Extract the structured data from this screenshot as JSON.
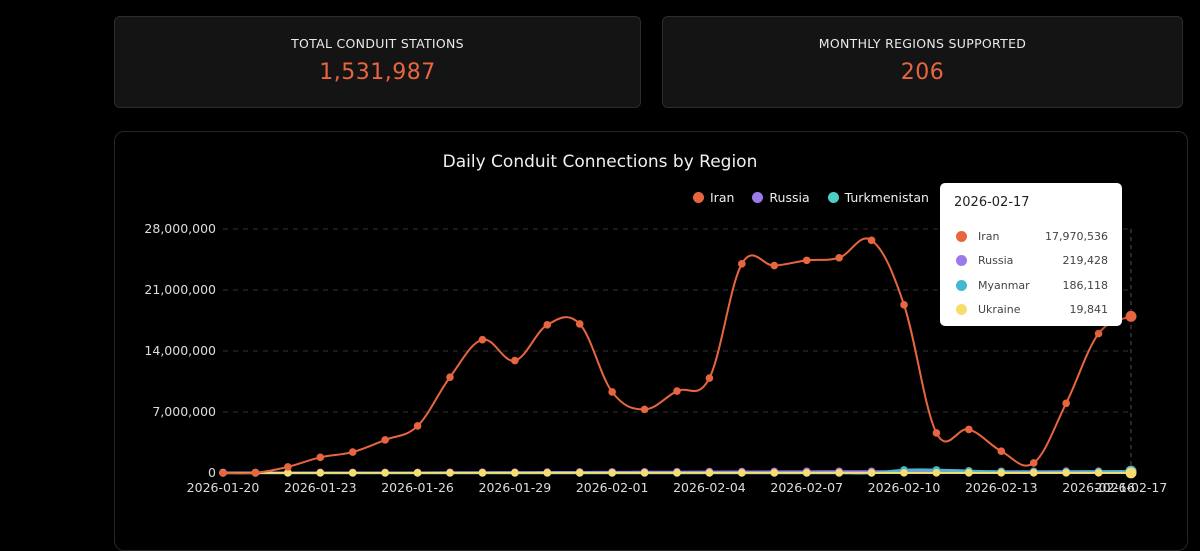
{
  "stats": [
    {
      "label": "TOTAL CONDUIT STATIONS",
      "value": "1,531,987"
    },
    {
      "label": "MONTHLY REGIONS SUPPORTED",
      "value": "206"
    }
  ],
  "chart": {
    "title": "Daily Conduit Connections by Region",
    "legend": [
      {
        "name": "Iran",
        "color": "#e8663f"
      },
      {
        "name": "Russia",
        "color": "#9b7bea"
      },
      {
        "name": "Turkmenistan",
        "color": "#4ecdc4"
      }
    ],
    "tooltip": {
      "date": "2026-02-17",
      "rows": [
        {
          "name": "Iran",
          "value": "17,970,536",
          "color": "#e8663f"
        },
        {
          "name": "Russia",
          "value": "219,428",
          "color": "#9b7bea"
        },
        {
          "name": "Myanmar",
          "value": "186,118",
          "color": "#45b7d1"
        },
        {
          "name": "Ukraine",
          "value": "19,841",
          "color": "#f7dc6f"
        }
      ]
    }
  },
  "chart_data": {
    "type": "line",
    "title": "Daily Conduit Connections by Region",
    "xlabel": "",
    "ylabel": "",
    "ylim": [
      0,
      28000000
    ],
    "yticks": [
      "0",
      "7,000,000",
      "14,000,000",
      "21,000,000",
      "28,000,000"
    ],
    "xtick_labels": [
      "2026-01-20",
      "2026-01-23",
      "2026-01-26",
      "2026-01-29",
      "2026-02-01",
      "2026-02-04",
      "2026-02-07",
      "2026-02-10",
      "2026-02-13",
      "2026-02-17"
    ],
    "grid": true,
    "legend_position": "top-right",
    "x": [
      "2026-01-20",
      "2026-01-21",
      "2026-01-22",
      "2026-01-23",
      "2026-01-24",
      "2026-01-25",
      "2026-01-26",
      "2026-01-27",
      "2026-01-28",
      "2026-01-29",
      "2026-01-30",
      "2026-01-31",
      "2026-02-01",
      "2026-02-02",
      "2026-02-03",
      "2026-02-04",
      "2026-02-05",
      "2026-02-06",
      "2026-02-07",
      "2026-02-08",
      "2026-02-09",
      "2026-02-10",
      "2026-02-11",
      "2026-02-12",
      "2026-02-13",
      "2026-02-14",
      "2026-02-15",
      "2026-02-16",
      "2026-02-17"
    ],
    "series": [
      {
        "name": "Iran",
        "color": "#e8663f",
        "values": [
          0,
          20000,
          700000,
          1800000,
          2400000,
          3800000,
          5400000,
          11000000,
          15300000,
          12900000,
          17000000,
          17100000,
          9300000,
          7300000,
          9400000,
          10900000,
          24000000,
          23800000,
          24400000,
          24700000,
          26700000,
          19300000,
          4600000,
          5000000,
          2500000,
          1150000,
          8000000,
          16000000,
          17970536
        ]
      },
      {
        "name": "Russia",
        "color": "#9b7bea",
        "values": [
          60000,
          60000,
          60000,
          60000,
          60000,
          60000,
          60000,
          80000,
          90000,
          100000,
          110000,
          120000,
          130000,
          140000,
          150000,
          160000,
          170000,
          180000,
          190000,
          200000,
          200000,
          210000,
          210000,
          210000,
          200000,
          200000,
          210000,
          215000,
          219428
        ]
      },
      {
        "name": "Myanmar",
        "color": "#45b7d1",
        "values": [
          0,
          0,
          0,
          0,
          0,
          0,
          0,
          0,
          0,
          0,
          0,
          0,
          0,
          0,
          0,
          0,
          0,
          0,
          0,
          0,
          0,
          350000,
          360000,
          250000,
          150000,
          120000,
          130000,
          160000,
          186118
        ]
      },
      {
        "name": "Ukraine",
        "color": "#f7dc6f",
        "values": [
          19000,
          19000,
          19000,
          19000,
          19000,
          19000,
          19000,
          19000,
          19000,
          19000,
          19000,
          19000,
          19000,
          19000,
          19000,
          19000,
          19000,
          19000,
          19000,
          19000,
          19000,
          19000,
          19000,
          19000,
          19000,
          19000,
          19000,
          19500,
          19841
        ]
      },
      {
        "name": "Turkmenistan",
        "color": "#4ecdc4",
        "values": [
          0,
          0,
          0,
          0,
          0,
          0,
          0,
          0,
          0,
          0,
          0,
          0,
          0,
          0,
          0,
          0,
          0,
          0,
          0,
          0,
          0,
          0,
          0,
          0,
          0,
          0,
          0,
          0,
          0
        ]
      }
    ],
    "tooltip_date": "2026-02-17"
  }
}
